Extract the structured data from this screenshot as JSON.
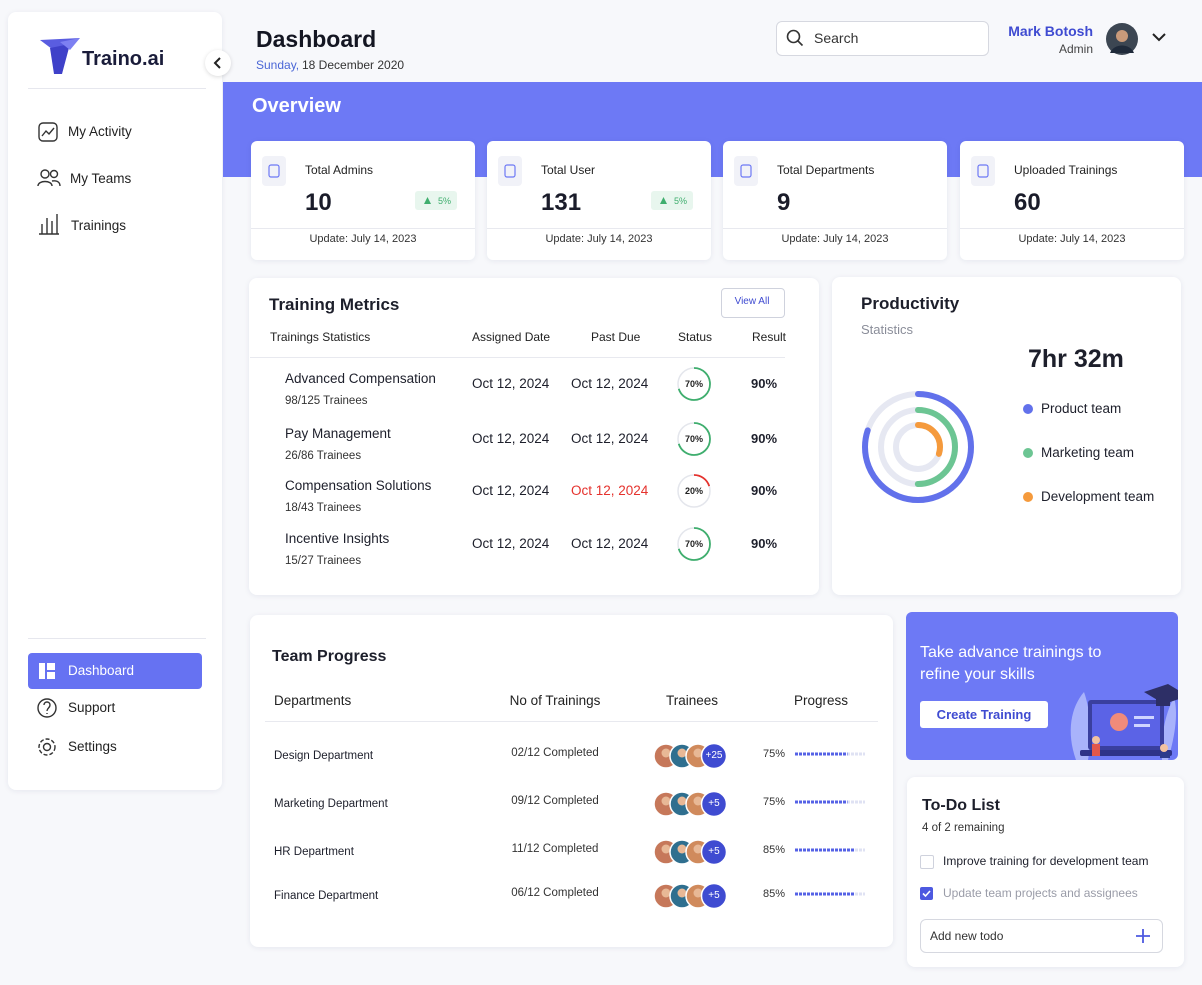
{
  "sidebar": {
    "brand": "Traino.ai",
    "nav": [
      "My Activity",
      "My Teams",
      "Trainings"
    ],
    "bottom_nav": [
      "Dashboard",
      "Support",
      "Settings"
    ]
  },
  "header": {
    "title": "Dashboard",
    "day": "Sunday,",
    "date": "18 December 2020",
    "search_placeholder": "Search",
    "user": {
      "name": "Mark Botosh",
      "role": "Admin"
    }
  },
  "overview": {
    "title": "Overview",
    "stats": [
      {
        "label": "Total Admins",
        "value": 10,
        "change": "5%",
        "update": "Update: July 14, 2023"
      },
      {
        "label": "Total User",
        "value": 131,
        "change": "5%",
        "update": "Update: July 14, 2023"
      },
      {
        "label": "Total Departments",
        "value": 9,
        "update": "Update: July 14, 2023"
      },
      {
        "label": "Uploaded Trainings",
        "value": 60,
        "update": "Update: July 14, 2023"
      }
    ]
  },
  "training_metrics": {
    "title": "Training Metrics",
    "view_all": "View All",
    "columns": [
      "Trainings Statistics",
      "Assigned Date",
      "Past Due",
      "Status",
      "Result"
    ],
    "rows": [
      {
        "name": "Advanced Compensation",
        "trainees": "98/125 Trainees",
        "assigned": "Oct 12, 2024",
        "past_due": "Oct 12, 2024",
        "status": 70,
        "status_label": "70%",
        "status_color": "#3fae6e",
        "result": "90%"
      },
      {
        "name": "Pay Management",
        "trainees": "26/86 Trainees",
        "assigned": "Oct 12, 2024",
        "past_due": "Oct 12, 2024",
        "status": 70,
        "status_label": "70%",
        "status_color": "#3fae6e",
        "result": "90%"
      },
      {
        "name": "Compensation Solutions",
        "trainees": "18/43 Trainees",
        "assigned": "Oct 12, 2024",
        "past_due": "Oct 12, 2024",
        "overdue": true,
        "status": 20,
        "status_label": "20%",
        "status_color": "#e5322d",
        "result": "90%"
      },
      {
        "name": "Incentive Insights",
        "trainees": "15/27 Trainees",
        "assigned": "Oct 12, 2024",
        "past_due": "Oct 12, 2024",
        "status": 70,
        "status_label": "70%",
        "status_color": "#3fae6e",
        "result": "90%"
      }
    ]
  },
  "productivity": {
    "title": "Productivity",
    "subtitle": "Statistics",
    "total": "7hr 32m",
    "series": [
      {
        "name": "Product team",
        "color": "#6271eb",
        "value": 80
      },
      {
        "name": "Marketing team",
        "color": "#6cc593",
        "value": 50
      },
      {
        "name": "Development team",
        "color": "#f59a3c",
        "value": 30
      }
    ]
  },
  "promo": {
    "text": [
      "Take advance trainings to",
      "refine your skills"
    ],
    "button": "Create Training"
  },
  "team_progress": {
    "title": "Team Progress",
    "columns": [
      "Departments",
      "No of Trainings",
      "Trainees",
      "Progress"
    ],
    "rows": [
      {
        "department": "Design Department",
        "trainings": "02/12 Completed",
        "extra_trainees": "+25",
        "progress": 75,
        "progress_label": "75%"
      },
      {
        "department": "Marketing Department",
        "trainings": "09/12 Completed",
        "extra_trainees": "+5",
        "progress": 75,
        "progress_label": "75%"
      },
      {
        "department": "HR Department",
        "trainings": "11/12 Completed",
        "extra_trainees": "+5",
        "progress": 85,
        "progress_label": "85%"
      },
      {
        "department": "Finance Department",
        "trainings": "06/12 Completed",
        "extra_trainees": "+5",
        "progress": 85,
        "progress_label": "85%"
      }
    ]
  },
  "todo": {
    "title": "To-Do List",
    "subtitle": "4 of 2 remaining",
    "items": [
      {
        "text": "Improve training for development team",
        "done": false
      },
      {
        "text": "Update team projects and assignees",
        "done": true
      }
    ],
    "input_placeholder": "Add new todo"
  }
}
